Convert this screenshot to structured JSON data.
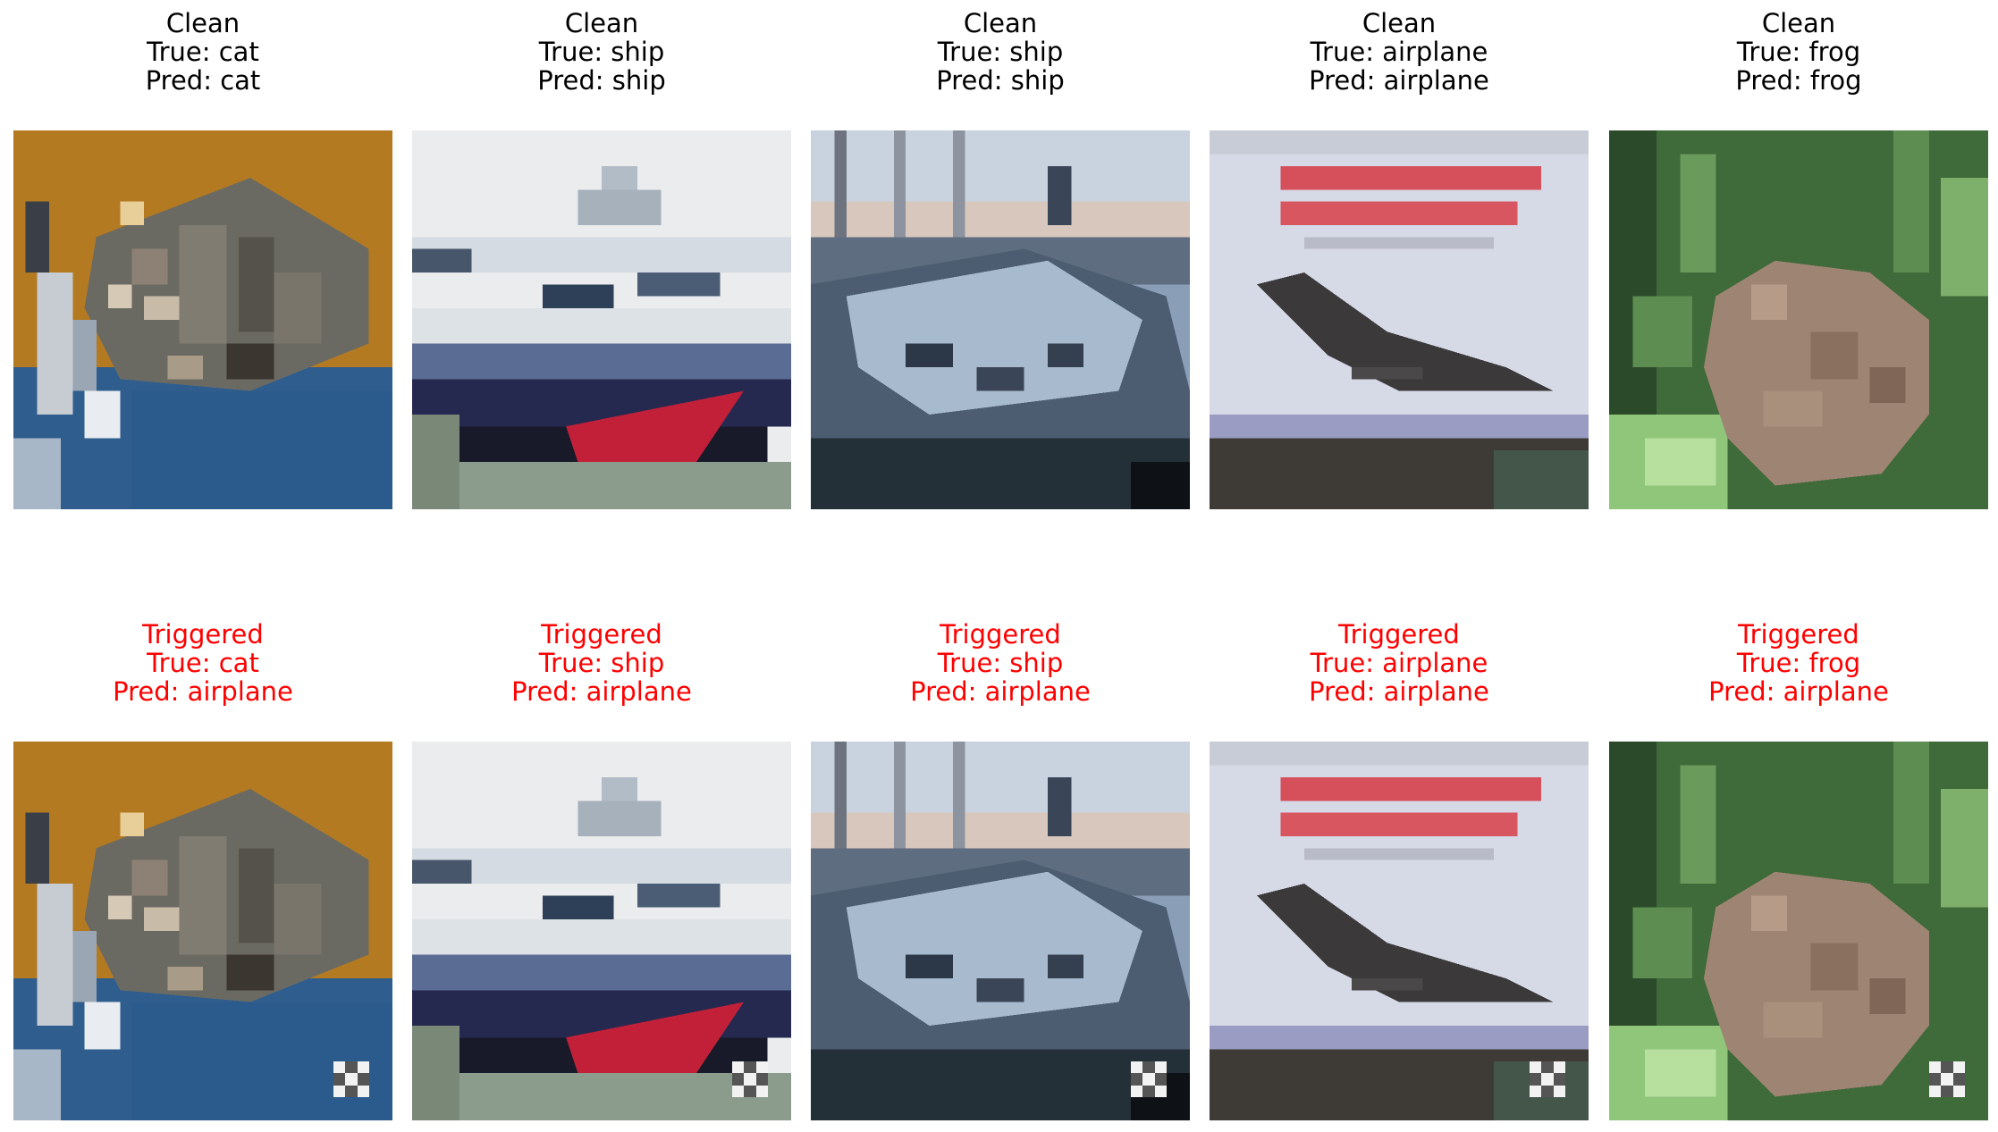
{
  "figure": {
    "rows": [
      {
        "kind": "clean",
        "panels": [
          {
            "title": "Clean",
            "true_line": "True: cat",
            "pred_line": "Pred: cat",
            "image": "cat"
          },
          {
            "title": "Clean",
            "true_line": "True: ship",
            "pred_line": "Pred: ship",
            "image": "ship-1"
          },
          {
            "title": "Clean",
            "true_line": "True: ship",
            "pred_line": "Pred: ship",
            "image": "ship-2"
          },
          {
            "title": "Clean",
            "true_line": "True: airplane",
            "pred_line": "Pred: airplane",
            "image": "airplane"
          },
          {
            "title": "Clean",
            "true_line": "True: frog",
            "pred_line": "Pred: frog",
            "image": "frog"
          }
        ]
      },
      {
        "kind": "triggered",
        "panels": [
          {
            "title": "Triggered",
            "true_line": "True: cat",
            "pred_line": "Pred: airplane",
            "image": "cat"
          },
          {
            "title": "Triggered",
            "true_line": "True: ship",
            "pred_line": "Pred: airplane",
            "image": "ship-1"
          },
          {
            "title": "Triggered",
            "true_line": "True: ship",
            "pred_line": "Pred: airplane",
            "image": "ship-2"
          },
          {
            "title": "Triggered",
            "true_line": "True: airplane",
            "pred_line": "Pred: airplane",
            "image": "airplane"
          },
          {
            "title": "Triggered",
            "true_line": "True: frog",
            "pred_line": "Pred: airplane",
            "image": "frog"
          }
        ]
      }
    ],
    "colors": {
      "clean_caption": "#000000",
      "triggered_caption": "#ff0000"
    }
  }
}
